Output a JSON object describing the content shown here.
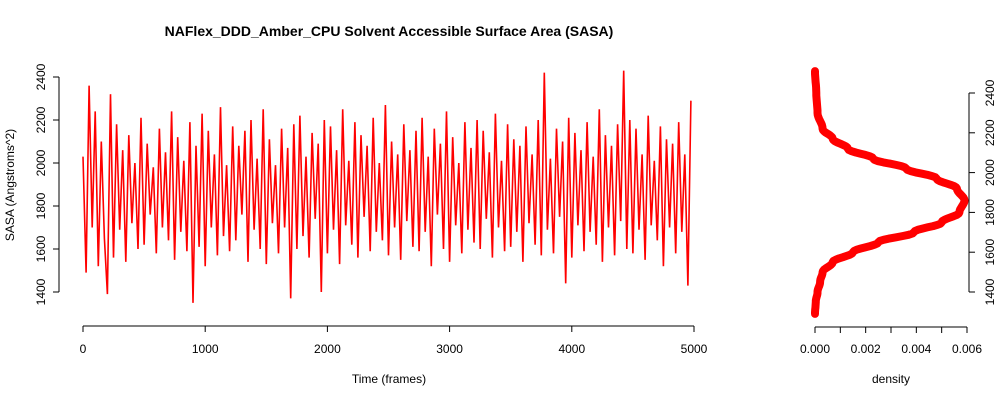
{
  "chart_data": [
    {
      "type": "line",
      "title": "NAFlex_DDD_Amber_CPU Solvent Accessible Surface Area (SASA)",
      "xlabel": "Time (frames)",
      "ylabel": "SASA (Angstroms^2)",
      "xlim": [
        0,
        5000
      ],
      "ylim": [
        1400,
        2400
      ],
      "xticks": [
        "0",
        "1000",
        "2000",
        "3000",
        "4000",
        "5000"
      ],
      "yticks": [
        "1400",
        "1600",
        "1800",
        "2000",
        "2200",
        "2400"
      ],
      "color": "#ff0000",
      "grid": false,
      "x_step": 25,
      "values": [
        2030,
        1490,
        2360,
        1700,
        2240,
        1520,
        2100,
        1650,
        1390,
        2320,
        1560,
        2180,
        1690,
        2060,
        1540,
        2130,
        1720,
        2000,
        1600,
        2210,
        1620,
        2090,
        1760,
        1980,
        1580,
        2160,
        1700,
        2050,
        1640,
        2240,
        1550,
        2120,
        1680,
        2010,
        1590,
        2190,
        1350,
        2080,
        1610,
        2230,
        1520,
        2150,
        1700,
        2040,
        1570,
        2260,
        1660,
        1990,
        1590,
        2170,
        1640,
        2080,
        1760,
        2150,
        1540,
        2200,
        1690,
        2020,
        1600,
        2250,
        1530,
        2110,
        1720,
        1990,
        1580,
        2160,
        1700,
        2070,
        1370,
        2180,
        1600,
        2220,
        1660,
        2030,
        1560,
        2140,
        1740,
        2090,
        1400,
        2200,
        1580,
        2170,
        1690,
        2060,
        1530,
        2250,
        1710,
        2010,
        1620,
        2190,
        1560,
        2130,
        1750,
        2080,
        1590,
        2210,
        1680,
        2000,
        1640,
        2270,
        1570,
        2100,
        1700,
        2040,
        1550,
        2180,
        1730,
        2060,
        1610,
        2150,
        1590,
        2210,
        1680,
        2030,
        1520,
        2160,
        1760,
        2090,
        1600,
        2240,
        1540,
        2120,
        1710,
        2000,
        1580,
        2190,
        1690,
        2070,
        1630,
        2200,
        1600,
        2150,
        1740,
        2050,
        1560,
        2230,
        1700,
        2010,
        1590,
        2180,
        1610,
        2110,
        1680,
        2080,
        1540,
        2170,
        1720,
        2040,
        1620,
        2200,
        1570,
        2420,
        1690,
        2020,
        1580,
        2160,
        1750,
        2100,
        1440,
        2210,
        1560,
        2140,
        1710,
        2060,
        1590,
        2190,
        1680,
        2030,
        1620,
        2250,
        1540,
        2130,
        1700,
        2080,
        1570,
        2180,
        1730,
        2430,
        1600,
        2200,
        1580,
        2160,
        1690,
        2040,
        1550,
        2220,
        1710,
        2010,
        1640,
        2170,
        1520,
        2110,
        1700,
        2090,
        1580,
        2190,
        1680,
        2040,
        1430,
        2290
      ]
    },
    {
      "type": "line",
      "xlabel": "density",
      "xlim": [
        0,
        0.006
      ],
      "ylim": [
        1400,
        2400
      ],
      "xticks": [
        "0.000",
        "0.002",
        "0.004",
        "0.006"
      ],
      "yticks": [
        "1400",
        "1600",
        "1800",
        "2000",
        "2200",
        "2400"
      ],
      "color": "#ff0000",
      "points": [
        [
          1290,
          0
        ],
        [
          1350,
          3e-05
        ],
        [
          1400,
          0.0001
        ],
        [
          1450,
          0.0002
        ],
        [
          1500,
          0.0003
        ],
        [
          1550,
          0.0007
        ],
        [
          1600,
          0.0015
        ],
        [
          1650,
          0.0025
        ],
        [
          1700,
          0.0039
        ],
        [
          1750,
          0.005
        ],
        [
          1800,
          0.0057
        ],
        [
          1860,
          0.0059
        ],
        [
          1920,
          0.0056
        ],
        [
          1970,
          0.0048
        ],
        [
          2020,
          0.0036
        ],
        [
          2070,
          0.0023
        ],
        [
          2120,
          0.0013
        ],
        [
          2170,
          0.0007
        ],
        [
          2220,
          0.0003
        ],
        [
          2300,
          0.0001
        ],
        [
          2400,
          5e-05
        ],
        [
          2510,
          0
        ]
      ]
    }
  ]
}
